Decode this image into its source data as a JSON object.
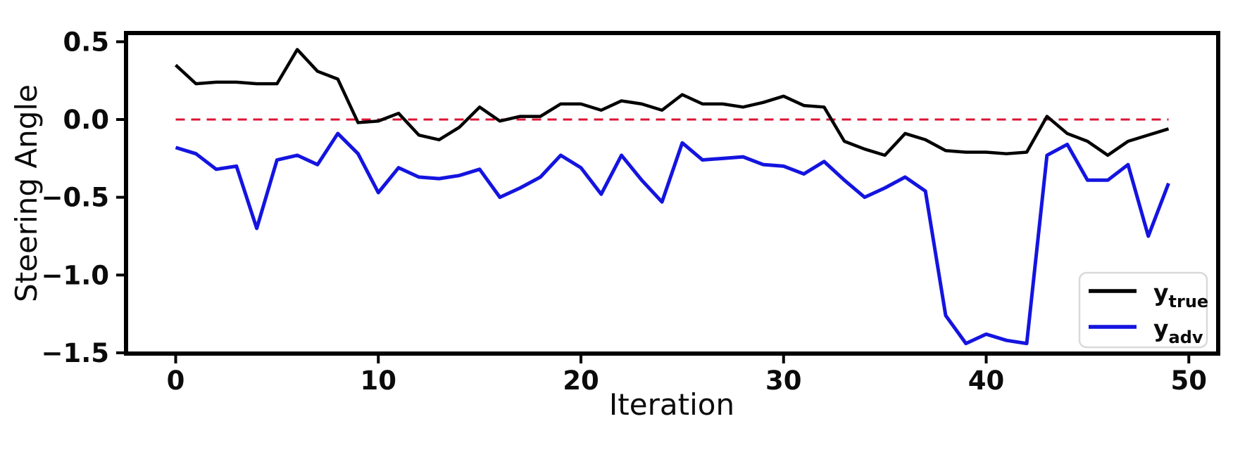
{
  "chart_data": {
    "type": "line",
    "title": "",
    "xlabel": "Iteration",
    "ylabel": "Steering Angle",
    "grid": false,
    "xlim": [
      -2.45,
      51.45
    ],
    "ylim": [
      -1.505,
      0.556
    ],
    "xticks": [
      0,
      10,
      20,
      30,
      40,
      50
    ],
    "yticks": [
      0.5,
      0.0,
      -0.5,
      -1.0,
      -1.5
    ],
    "x": [
      0,
      1,
      2,
      3,
      4,
      5,
      6,
      7,
      8,
      9,
      10,
      11,
      12,
      13,
      14,
      15,
      16,
      17,
      18,
      19,
      20,
      21,
      22,
      23,
      24,
      25,
      26,
      27,
      28,
      29,
      30,
      31,
      32,
      33,
      34,
      35,
      36,
      37,
      38,
      39,
      40,
      41,
      42,
      43,
      44,
      45,
      46,
      47,
      48,
      49
    ],
    "series": [
      {
        "name": "y_true",
        "label_main": "y",
        "label_sub": "true",
        "color": "#000000",
        "line_width": 4.5,
        "values": [
          0.35,
          0.23,
          0.24,
          0.24,
          0.23,
          0.23,
          0.45,
          0.31,
          0.26,
          -0.02,
          -0.01,
          0.04,
          -0.1,
          -0.13,
          -0.05,
          0.08,
          -0.01,
          0.02,
          0.02,
          0.1,
          0.1,
          0.06,
          0.12,
          0.1,
          0.06,
          0.16,
          0.1,
          0.1,
          0.08,
          0.11,
          0.15,
          0.09,
          0.08,
          -0.14,
          -0.19,
          -0.23,
          -0.09,
          -0.13,
          -0.2,
          -0.21,
          -0.21,
          -0.22,
          -0.21,
          0.02,
          -0.09,
          -0.14,
          -0.23,
          -0.14,
          -0.1,
          -0.06
        ]
      },
      {
        "name": "y_adv",
        "label_main": "y",
        "label_sub": "adv",
        "color": "#1414e0",
        "line_width": 5,
        "values": [
          -0.18,
          -0.22,
          -0.32,
          -0.3,
          -0.7,
          -0.26,
          -0.23,
          -0.29,
          -0.09,
          -0.22,
          -0.47,
          -0.31,
          -0.37,
          -0.38,
          -0.36,
          -0.32,
          -0.5,
          -0.44,
          -0.37,
          -0.23,
          -0.31,
          -0.48,
          -0.23,
          -0.39,
          -0.53,
          -0.15,
          -0.26,
          -0.25,
          -0.24,
          -0.29,
          -0.3,
          -0.35,
          -0.27,
          -0.39,
          -0.5,
          -0.44,
          -0.37,
          -0.46,
          -1.26,
          -1.44,
          -1.38,
          -1.42,
          -1.44,
          -0.23,
          -0.16,
          -0.39,
          -0.39,
          -0.29,
          -0.75,
          -0.41
        ]
      }
    ],
    "reference_line": {
      "y": 0.0,
      "color": "#dc1435",
      "style": "dashed",
      "line_width": 3
    },
    "legend": {
      "position": "lower right",
      "entries": [
        {
          "label_main": "y",
          "label_sub": "true",
          "color": "#000000"
        },
        {
          "label_main": "y",
          "label_sub": "adv",
          "color": "#1414e0"
        }
      ]
    },
    "axis_color": "#000000",
    "background_color": "#ffffff"
  }
}
